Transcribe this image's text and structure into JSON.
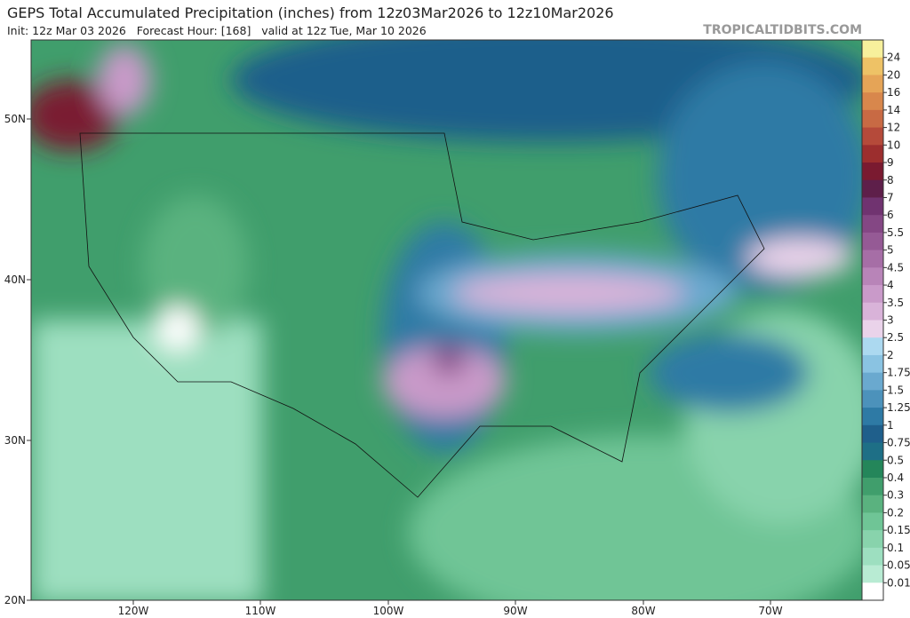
{
  "header": {
    "title": "GEPS Total Accumulated Precipitation (inches) from 12z03Mar2026 to 12z10Mar2026",
    "subtitle": "Init: 12z Mar 03 2026   Forecast Hour: [168]   valid at 12z Tue, Mar 10 2026",
    "site": "TROPICALTIDBITS.COM"
  },
  "map": {
    "lat_labels": [
      "50N",
      "40N",
      "30N",
      "20N"
    ],
    "lon_labels": [
      "120W",
      "110W",
      "100W",
      "90W",
      "80W",
      "70W"
    ]
  },
  "colorbar": {
    "labels": [
      "24",
      "20",
      "16",
      "14",
      "12",
      "10",
      "9",
      "8",
      "7",
      "6",
      "5.5",
      "5",
      "4.5",
      "4",
      "3.5",
      "3",
      "2.5",
      "2",
      "1.75",
      "1.5",
      "1.25",
      "1",
      "0.75",
      "0.5",
      "0.4",
      "0.3",
      "0.2",
      "0.15",
      "0.1",
      "0.05",
      "0.01"
    ],
    "colors": [
      "#f7f09c",
      "#eec266",
      "#e5a457",
      "#d8874c",
      "#c86a44",
      "#b54a3a",
      "#9c2e2e",
      "#7a1a30",
      "#5e1f4a",
      "#703370",
      "#844784",
      "#955a95",
      "#a66ea6",
      "#b884b8",
      "#c99ac9",
      "#d9b3d9",
      "#ead3ea",
      "#acd9f0",
      "#8ac3e2",
      "#6aa9cf",
      "#4c92bb",
      "#2e7aa5",
      "#1f5f8b",
      "#1e6f86",
      "#24865a",
      "#409e6c",
      "#5ab27f",
      "#6fc596",
      "#88d3ac",
      "#9ddfc0",
      "#b8ebd3",
      "#ffffff"
    ]
  }
}
